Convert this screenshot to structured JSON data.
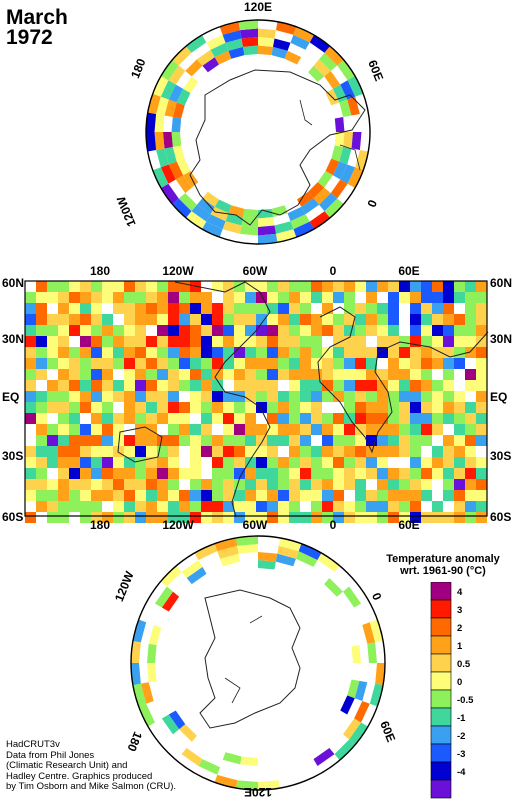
{
  "title": {
    "month": "March",
    "year": "1972"
  },
  "north_polar": {
    "labels": {
      "top": "120E",
      "upper_left": "180",
      "upper_right": "60E",
      "lower_left": "120W",
      "lower_right": "0"
    }
  },
  "world_map": {
    "top_lon_labels": [
      "180",
      "120W",
      "60W",
      "0",
      "60E"
    ],
    "bottom_lon_labels": [
      "180",
      "120W",
      "60W",
      "0",
      "60E"
    ],
    "lat_labels_left": [
      "60N",
      "30N",
      "EQ",
      "30S",
      "60S"
    ],
    "lat_labels_right": [
      "60N",
      "30N",
      "EQ",
      "30S",
      "60S"
    ]
  },
  "south_polar": {
    "labels": {
      "upper_left": "120W",
      "upper_right": "0",
      "lower_left": "180",
      "lower_right": "60E",
      "bottom": "120E",
      "top": "60W"
    }
  },
  "legend": {
    "title_line1": "Temperature anomaly",
    "title_line2": "wrt. 1961-90  (°C)",
    "entries": [
      {
        "label": "4",
        "color": "#a0007f"
      },
      {
        "label": "3",
        "color": "#ff1a00"
      },
      {
        "label": "2",
        "color": "#ff6a00"
      },
      {
        "label": "1",
        "color": "#ffa21a"
      },
      {
        "label": "0.5",
        "color": "#ffd24d"
      },
      {
        "label": "0",
        "color": "#fdfd7a"
      },
      {
        "label": "-0.5",
        "color": "#8ef05a"
      },
      {
        "label": "-1",
        "color": "#40d79c"
      },
      {
        "label": "-2",
        "color": "#3aa0f0"
      },
      {
        "label": "-3",
        "color": "#1a5aff"
      },
      {
        "label": "-4",
        "color": "#0000d0"
      },
      {
        "label": "",
        "color": "#6a10d8"
      }
    ]
  },
  "credit": {
    "line1": "HadCRUT3v",
    "line2": "Data from Phil Jones",
    "line3": "(Climatic Research Unit) and",
    "line4": "Hadley Centre.  Graphics produced",
    "line5": "by Tim Osborn and Mike Salmon (CRU)."
  }
}
